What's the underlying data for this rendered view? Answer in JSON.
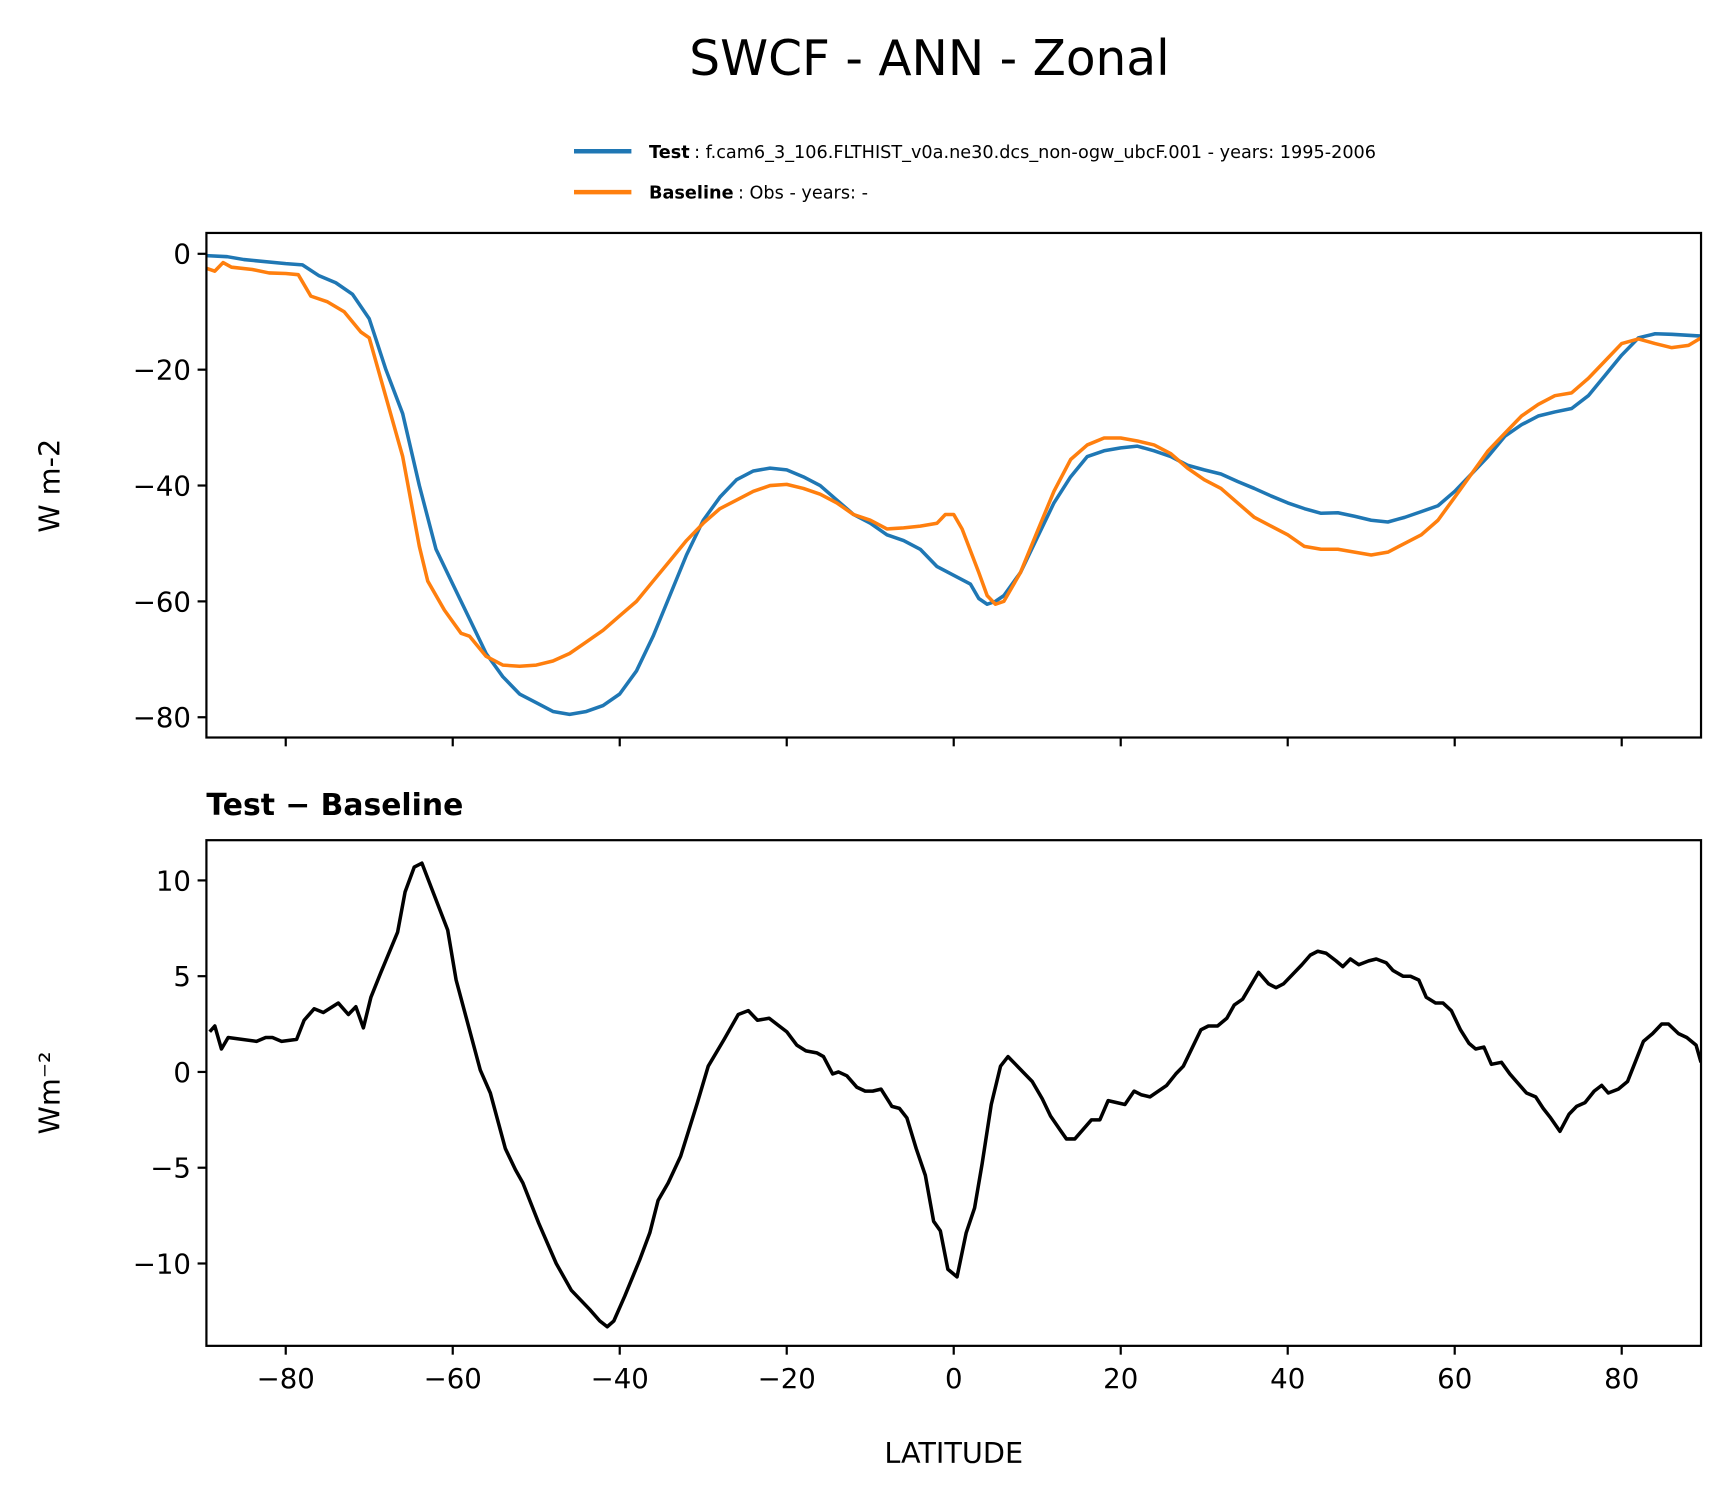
{
  "chart_data": [
    {
      "type": "line",
      "title": "SWCF - ANN - Zonal",
      "xlabel": "",
      "ylabel": "W m-2",
      "xlim": [
        -89.5,
        89.5
      ],
      "ylim": [
        -83.5,
        3.6
      ],
      "yticks": [
        0,
        -20,
        -40,
        -60,
        -80
      ],
      "xticks": [
        -80,
        -60,
        -40,
        -20,
        0,
        20,
        40,
        60,
        80
      ],
      "legend_position": "top-right (above axes)",
      "series": [
        {
          "name": "Test",
          "legend_detail": "f.cam6_3_106.FLTHIST_v0a.ne30.dcs_non-ogw_ubcF.001 - years: 1995-2006",
          "color": "#1f77b4",
          "x": [
            -89.5,
            -87,
            -85,
            -80,
            -78,
            -76,
            -74,
            -72,
            -70,
            -68,
            -66,
            -64,
            -62,
            -60,
            -58,
            -56,
            -54,
            -52,
            -50,
            -48,
            -46,
            -44,
            -42,
            -40,
            -38,
            -36,
            -34,
            -32,
            -30,
            -28,
            -26,
            -24,
            -22,
            -20,
            -18,
            -16,
            -14,
            -12,
            -10,
            -8,
            -6,
            -4,
            -2,
            0,
            2,
            3,
            4,
            5,
            6,
            8,
            10,
            12,
            14,
            16,
            18,
            20,
            22,
            24,
            26,
            28,
            30,
            32,
            34,
            36,
            38,
            40,
            42,
            44,
            46,
            48,
            50,
            52,
            54,
            56,
            58,
            60,
            62,
            64,
            66,
            68,
            70,
            72,
            74,
            76,
            78,
            80,
            82,
            84,
            86,
            89.5
          ],
          "y": [
            -0.3,
            -0.5,
            -1,
            -1.7,
            -1.9,
            -3.8,
            -5,
            -7,
            -11.2,
            -20,
            -27.6,
            -40,
            -51,
            -57,
            -63,
            -69,
            -73,
            -76,
            -77.5,
            -79,
            -79.5,
            -79,
            -78,
            -76,
            -72,
            -66,
            -59,
            -52,
            -46,
            -42,
            -39,
            -37.5,
            -37,
            -37.3,
            -38.5,
            -40,
            -42.5,
            -45,
            -46.5,
            -48.5,
            -49.5,
            -51,
            -54,
            -55.5,
            -57,
            -59.5,
            -60.5,
            -60,
            -59,
            -55,
            -49,
            -43,
            -38.5,
            -35,
            -34,
            -33.5,
            -33.2,
            -34,
            -35,
            -36.5,
            -37.3,
            -38,
            -39.3,
            -40.5,
            -41.8,
            -43,
            -44,
            -44.8,
            -44.7,
            -45.3,
            -46,
            -46.3,
            -45.5,
            -44.5,
            -43.5,
            -41,
            -38,
            -35,
            -31.5,
            -29.5,
            -28,
            -27.3,
            -26.7,
            -24.5,
            -21,
            -17.5,
            -14.5,
            -13.8,
            -13.9,
            -14.2
          ]
        },
        {
          "name": "Baseline",
          "legend_detail": "Obs - years: -",
          "color": "#ff7f0e",
          "x": [
            -89.5,
            -88.5,
            -87.5,
            -86.5,
            -84,
            -82,
            -80,
            -78.5,
            -77,
            -75,
            -73,
            -71,
            -70,
            -66,
            -64,
            -63,
            -61,
            -59,
            -58,
            -56,
            -54,
            -52,
            -50,
            -48,
            -46,
            -44,
            -42,
            -40,
            -38,
            -36,
            -34,
            -32,
            -30,
            -28,
            -26,
            -24,
            -22,
            -20,
            -18,
            -16,
            -14,
            -12,
            -10,
            -8,
            -6,
            -4,
            -2,
            -1,
            0,
            1,
            3,
            4,
            5,
            6,
            8,
            10,
            12,
            14,
            16,
            18,
            20,
            22,
            24,
            26,
            28,
            30,
            32,
            34,
            36,
            38,
            40,
            42,
            44,
            46,
            48,
            50,
            52,
            54,
            56,
            58,
            60,
            62,
            64,
            66,
            68,
            70,
            72,
            74,
            76,
            78,
            80,
            82,
            84,
            86,
            88,
            89.5
          ],
          "y": [
            -2.5,
            -3,
            -1.5,
            -2.3,
            -2.7,
            -3.3,
            -3.4,
            -3.6,
            -7.3,
            -8.3,
            -10,
            -13.5,
            -14.5,
            -35,
            -50.5,
            -56.5,
            -61.5,
            -65.5,
            -66,
            -69.5,
            -71,
            -71.2,
            -71,
            -70.3,
            -69,
            -67,
            -65,
            -62.5,
            -60,
            -56.5,
            -53,
            -49.5,
            -46.5,
            -44,
            -42.5,
            -41,
            -40,
            -39.8,
            -40.5,
            -41.5,
            -43,
            -45,
            -46,
            -47.5,
            -47.3,
            -47,
            -46.5,
            -45,
            -45,
            -47.5,
            -55,
            -59,
            -60.5,
            -60,
            -55,
            -48,
            -41,
            -35.5,
            -33,
            -31.8,
            -31.8,
            -32.3,
            -33,
            -34.5,
            -37,
            -39,
            -40.5,
            -43,
            -45.5,
            -47,
            -48.5,
            -50.5,
            -51,
            -51,
            -51.5,
            -52,
            -51.5,
            -50,
            -48.5,
            -46,
            -42,
            -38,
            -34,
            -31,
            -28,
            -26,
            -24.5,
            -24,
            -21.5,
            -18.5,
            -15.5,
            -14.7,
            -15.5,
            -16.2,
            -15.8,
            -14.5
          ]
        }
      ]
    },
    {
      "type": "line",
      "title": "Test − Baseline",
      "xlabel": "LATITUDE",
      "ylabel": "Wm⁻²",
      "xlim": [
        -89.5,
        89.5
      ],
      "ylim": [
        -14.3,
        12.1
      ],
      "yticks": [
        10,
        5,
        0,
        -5,
        -10
      ],
      "xticks": [
        -80,
        -60,
        -40,
        -20,
        0,
        20,
        40,
        60,
        80
      ],
      "series": [
        {
          "color": "#000000",
          "x": [
            -89.1,
            -88.5,
            -87.7,
            -86.9,
            -83.5,
            -82.4,
            -81.6,
            -80.5,
            -78.7,
            -77.8,
            -76.6,
            -75.5,
            -73.7,
            -72.5,
            -71.6,
            -70.7,
            -69.8,
            -68.6,
            -66.6,
            -65.7,
            -64.6,
            -63.7,
            -60.6,
            -59.6,
            -56.7,
            -55.5,
            -53.7,
            -52.5,
            -51.6,
            -49.7,
            -47.6,
            -45.8,
            -43.6,
            -42.4,
            -41.5,
            -40.7,
            -39.4,
            -37.6,
            -36.4,
            -35.4,
            -34.2,
            -32.7,
            -30.7,
            -29.4,
            -27.5,
            -25.8,
            -24.6,
            -23.5,
            -22.1,
            -20.9,
            -20.0,
            -18.8,
            -17.7,
            -16.4,
            -15.6,
            -14.5,
            -13.8,
            -12.8,
            -11.6,
            -10.6,
            -9.7,
            -8.7,
            -7.4,
            -6.5,
            -5.6,
            -4.5,
            -3.4,
            -2.4,
            -1.6,
            -0.7,
            0.4,
            1.5,
            2.5,
            3.4,
            4.5,
            5.6,
            6.5,
            7.4,
            9.4,
            10.6,
            11.6,
            12.7,
            13.5,
            14.5,
            16.5,
            17.5,
            18.5,
            20.5,
            21.6,
            22.5,
            23.5,
            25.5,
            26.6,
            27.5,
            29.6,
            30.5,
            31.6,
            32.7,
            33.6,
            34.6,
            36.5,
            37.7,
            38.6,
            39.5,
            41.7,
            42.7,
            43.6,
            44.6,
            45.8,
            46.6,
            47.5,
            48.5,
            49.7,
            50.6,
            51.8,
            52.6,
            53.8,
            54.7,
            55.7,
            56.6,
            57.7,
            58.6,
            59.6,
            60.7,
            61.7,
            62.5,
            63.5,
            64.4,
            65.6,
            66.6,
            68.6,
            69.7,
            70.6,
            71.5,
            72.6,
            73.7,
            74.6,
            75.6,
            76.7,
            77.6,
            78.4,
            79.6,
            80.7,
            81.7,
            82.6,
            83.7,
            84.8,
            85.6,
            86.8,
            87.8,
            88.9,
            89.5
          ],
          "y": [
            2.1,
            2.4,
            1.2,
            1.8,
            1.6,
            1.8,
            1.8,
            1.6,
            1.7,
            2.7,
            3.3,
            3.1,
            3.6,
            3.0,
            3.4,
            2.3,
            3.9,
            5.2,
            7.3,
            9.4,
            10.7,
            10.9,
            7.4,
            4.8,
            0.1,
            -1.1,
            -4,
            -5.1,
            -5.8,
            -7.9,
            -10,
            -11.4,
            -12.4,
            -13,
            -13.3,
            -13,
            -11.7,
            -9.8,
            -8.4,
            -6.7,
            -5.8,
            -4.4,
            -1.6,
            0.3,
            1.7,
            3,
            3.2,
            2.7,
            2.8,
            2.4,
            2.1,
            1.4,
            1.1,
            1.0,
            0.8,
            -0.1,
            0,
            -0.2,
            -0.8,
            -1.0,
            -1.0,
            -0.9,
            -1.8,
            -1.9,
            -2.4,
            -4,
            -5.4,
            -7.8,
            -8.3,
            -10.3,
            -10.7,
            -8.4,
            -7.1,
            -4.8,
            -1.7,
            0.3,
            0.8,
            0.4,
            -0.5,
            -1.4,
            -2.3,
            -3,
            -3.5,
            -3.5,
            -2.5,
            -2.5,
            -1.5,
            -1.7,
            -1,
            -1.2,
            -1.3,
            -0.7,
            -0.1,
            0.3,
            2.2,
            2.4,
            2.4,
            2.8,
            3.5,
            3.8,
            5.2,
            4.6,
            4.4,
            4.6,
            5.6,
            6.1,
            6.3,
            6.2,
            5.8,
            5.5,
            5.9,
            5.6,
            5.8,
            5.9,
            5.7,
            5.3,
            5.0,
            5.0,
            4.8,
            3.9,
            3.6,
            3.6,
            3.2,
            2.2,
            1.5,
            1.2,
            1.3,
            0.4,
            0.5,
            -0.1,
            -1.1,
            -1.3,
            -1.9,
            -2.4,
            -3.1,
            -2.2,
            -1.8,
            -1.6,
            -1.0,
            -0.7,
            -1.1,
            -0.9,
            -0.5,
            0.6,
            1.6,
            2.0,
            2.5,
            2.5,
            2.0,
            1.8,
            1.4,
            0.5
          ]
        }
      ]
    }
  ],
  "legend": {
    "test_label": "Test",
    "test_detail": ": f.cam6_3_106.FLTHIST_v0a.ne30.dcs_non-ogw_ubcF.001 - years: 1995-2006",
    "baseline_label": "Baseline",
    "baseline_detail": ": Obs - years: -"
  }
}
